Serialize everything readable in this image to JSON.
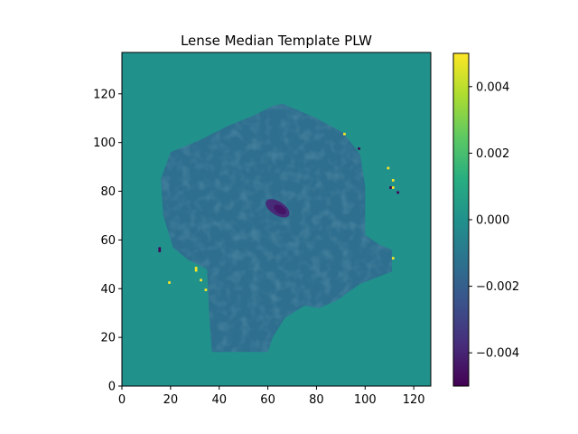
{
  "chart_data": {
    "type": "heatmap",
    "title": "Lense Median Template PLW",
    "xlabel": "",
    "ylabel": "",
    "xlim": [
      0,
      127
    ],
    "ylim": [
      0,
      137
    ],
    "x_ticks": [
      0,
      20,
      40,
      60,
      80,
      100,
      120
    ],
    "y_ticks": [
      0,
      20,
      40,
      60,
      80,
      100,
      120
    ],
    "colormap": "viridis",
    "colorbar": {
      "range": [
        -0.005,
        0.005
      ],
      "ticks": [
        0.004,
        0.002,
        0.0,
        -0.002,
        -0.004
      ],
      "tick_labels": [
        "0.004",
        "0.002",
        "0.000",
        "−0.002",
        "−0.004"
      ]
    },
    "background_value": 0.0,
    "region": {
      "description_value": -0.0014,
      "outline": [
        [
          37,
          14
        ],
        [
          47,
          14
        ],
        [
          60,
          14
        ],
        [
          62,
          20
        ],
        [
          67,
          28
        ],
        [
          75,
          33
        ],
        [
          81,
          32
        ],
        [
          88,
          35
        ],
        [
          98,
          42
        ],
        [
          111,
          47
        ],
        [
          111,
          56
        ],
        [
          106,
          58
        ],
        [
          100,
          62
        ],
        [
          100,
          72
        ],
        [
          100,
          82
        ],
        [
          98,
          95
        ],
        [
          91,
          104
        ],
        [
          80,
          110
        ],
        [
          66,
          116
        ],
        [
          62,
          115
        ],
        [
          54,
          111
        ],
        [
          44,
          107
        ],
        [
          32,
          101
        ],
        [
          20,
          96
        ],
        [
          16,
          85
        ],
        [
          17,
          70
        ],
        [
          21,
          57
        ],
        [
          27,
          52
        ],
        [
          35,
          48
        ],
        [
          36,
          28
        ]
      ],
      "min_blob": {
        "center": [
          64,
          73
        ],
        "value": -0.0045
      }
    },
    "specks": [
      {
        "x": 91,
        "y": 103,
        "value": 0.005
      },
      {
        "x": 97,
        "y": 97,
        "value": -0.005
      },
      {
        "x": 109,
        "y": 89,
        "value": 0.005
      },
      {
        "x": 111,
        "y": 84,
        "value": 0.005
      },
      {
        "x": 110,
        "y": 81,
        "value": -0.005
      },
      {
        "x": 111,
        "y": 81,
        "value": 0.005
      },
      {
        "x": 113,
        "y": 79,
        "value": -0.005
      },
      {
        "x": 15,
        "y": 56,
        "value": -0.005
      },
      {
        "x": 15,
        "y": 55,
        "value": -0.005
      },
      {
        "x": 111,
        "y": 52,
        "value": 0.005
      },
      {
        "x": 30,
        "y": 48,
        "value": 0.005
      },
      {
        "x": 30,
        "y": 47,
        "value": 0.005
      },
      {
        "x": 32,
        "y": 43,
        "value": 0.005
      },
      {
        "x": 19,
        "y": 42,
        "value": 0.005
      },
      {
        "x": 34,
        "y": 39,
        "value": 0.005
      }
    ]
  }
}
